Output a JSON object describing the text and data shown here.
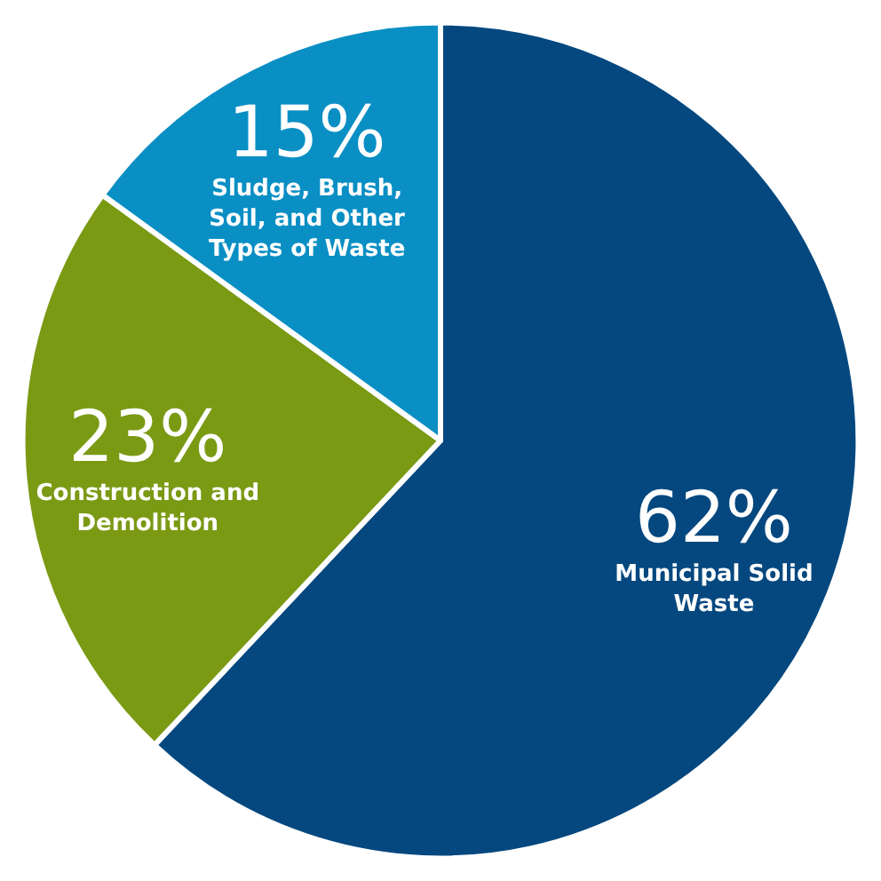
{
  "chart_data": {
    "type": "pie",
    "categories": [
      "Municipal Solid Waste",
      "Construction and Demolition",
      "Sludge, Brush, Soil, and Other Types of Waste"
    ],
    "values": [
      62,
      23,
      15
    ],
    "value_labels": [
      "62%",
      "23%",
      "15%"
    ],
    "colors": [
      "#05487f",
      "#7a9a14",
      "#0a8fc4"
    ],
    "legend": false
  }
}
